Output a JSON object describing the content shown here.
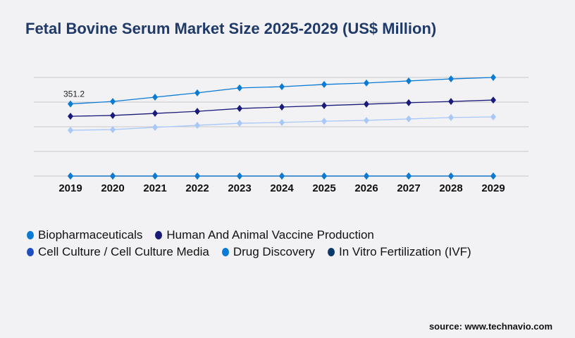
{
  "chart_data": {
    "type": "line",
    "title": "Fetal Bovine Serum Market Size 2025-2029 (US$ Million)",
    "xlabel": "",
    "ylabel": "",
    "categories": [
      "2019",
      "2020",
      "2021",
      "2022",
      "2023",
      "2024",
      "2025",
      "2026",
      "2027",
      "2028",
      "2029"
    ],
    "ylim": [
      0,
      480
    ],
    "grid": true,
    "legend_position": "bottom",
    "annotations": [
      {
        "series": 0,
        "index": 0,
        "text": "351.2"
      }
    ],
    "series": [
      {
        "name": "Biopharmaceuticals",
        "color": "#0a7bd4",
        "values": [
          351.2,
          363,
          384,
          405,
          429,
          435,
          446,
          453,
          463,
          473,
          480
        ]
      },
      {
        "name": "Human And Animal Vaccine Production",
        "color": "#1a1a7a",
        "values": [
          291,
          295,
          305,
          315,
          329,
          336,
          343,
          350,
          357,
          363,
          370
        ]
      },
      {
        "name": "Cell Culture / Cell Culture Media",
        "color": "#a8c8f8",
        "legend_color": "#1f4fbf",
        "values": [
          223,
          226,
          237,
          247,
          257,
          261,
          267,
          271,
          278,
          285,
          288
        ]
      },
      {
        "name": "Drug Discovery",
        "color": "#0a7bd4",
        "values": [
          0,
          0,
          0,
          0,
          0,
          0,
          0,
          0,
          0,
          0,
          0
        ]
      },
      {
        "name": "In Vitro Fertilization (IVF)",
        "color": "#1a1a7a",
        "legend_color": "#0a3a6a",
        "values": [
          0,
          0,
          0,
          0,
          0,
          0,
          0,
          0,
          0,
          0,
          0
        ]
      }
    ]
  },
  "source": "source: www.technavio.com"
}
